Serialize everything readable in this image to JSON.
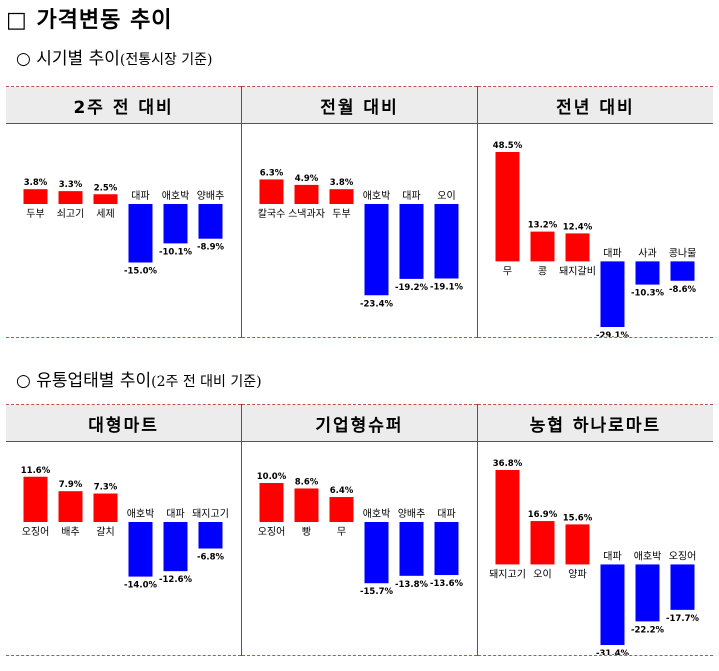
{
  "title": "□ 가격변동 추이",
  "section1": {
    "bullet": "○",
    "main": "시기별 추이",
    "note": "(전통시장 기준)"
  },
  "section2": {
    "bullet": "○",
    "main": "유통업태별 추이",
    "note": "(2주 전 대비 기준)"
  },
  "colors": {
    "up": "#ff0000",
    "down": "#0000ff"
  },
  "chart_data": [
    {
      "type": "bar",
      "title": "2주 전 대비",
      "categories": [
        "두부",
        "쇠고기",
        "세제",
        "대파",
        "애호박",
        "양배추"
      ],
      "values": [
        3.8,
        3.3,
        2.5,
        -15.0,
        -10.1,
        -8.9
      ],
      "labels": [
        "3.8%",
        "3.3%",
        "2.5%",
        "-15.0%",
        "-10.1%",
        "-8.9%"
      ],
      "unit": "%"
    },
    {
      "type": "bar",
      "title": "전월 대비",
      "categories": [
        "칼국수",
        "스낵과자",
        "두부",
        "애호박",
        "대파",
        "오이"
      ],
      "values": [
        6.3,
        4.9,
        3.8,
        -23.4,
        -19.2,
        -19.1
      ],
      "labels": [
        "6.3%",
        "4.9%",
        "3.8%",
        "-23.4%",
        "-19.2%",
        "-19.1%"
      ],
      "unit": "%"
    },
    {
      "type": "bar",
      "title": "전년 대비",
      "categories": [
        "무",
        "콩",
        "돼지갈비",
        "대파",
        "사과",
        "콩나물"
      ],
      "values": [
        48.5,
        13.2,
        12.4,
        -29.1,
        -10.3,
        -8.6
      ],
      "labels": [
        "48.5%",
        "13.2%",
        "12.4%",
        "-29.1%",
        "-10.3%",
        "-8.6%"
      ],
      "unit": "%"
    },
    {
      "type": "bar",
      "title": "대형마트",
      "categories": [
        "오징어",
        "배추",
        "갈치",
        "애호박",
        "대파",
        "돼지고기"
      ],
      "values": [
        11.6,
        7.9,
        7.3,
        -14.0,
        -12.6,
        -6.8
      ],
      "labels": [
        "11.6%",
        "7.9%",
        "7.3%",
        "-14.0%",
        "-12.6%",
        "-6.8%"
      ],
      "unit": "%"
    },
    {
      "type": "bar",
      "title": "기업형슈퍼",
      "categories": [
        "오징어",
        "빵",
        "무",
        "애호박",
        "양배추",
        "대파"
      ],
      "values": [
        10.0,
        8.6,
        6.4,
        -15.7,
        -13.8,
        -13.6
      ],
      "labels": [
        "10.0%",
        "8.6%",
        "6.4%",
        "-15.7%",
        "-13.8%",
        "-13.6%"
      ],
      "unit": "%"
    },
    {
      "type": "bar",
      "title": "농협 하나로마트",
      "categories": [
        "돼지고기",
        "오이",
        "양파",
        "대파",
        "애호박",
        "오징어"
      ],
      "values": [
        36.8,
        16.9,
        15.6,
        -31.4,
        -22.2,
        -17.7
      ],
      "labels": [
        "36.8%",
        "16.9%",
        "15.6%",
        "-31.4%",
        "-22.2%",
        "-17.7%"
      ],
      "unit": "%"
    }
  ]
}
